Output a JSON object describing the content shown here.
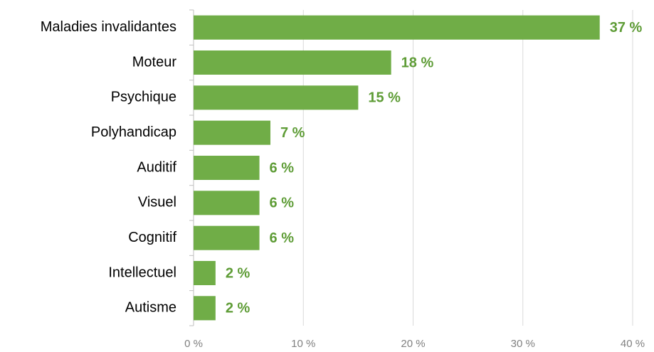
{
  "chart_data": {
    "type": "bar",
    "orientation": "horizontal",
    "categories": [
      "Maladies invalidantes",
      "Moteur",
      "Psychique",
      "Polyhandicap",
      "Auditif",
      "Visuel",
      "Cognitif",
      "Intellectuel",
      "Autisme"
    ],
    "values": [
      37,
      18,
      15,
      7,
      6,
      6,
      6,
      2,
      2
    ],
    "value_labels": [
      "37 %",
      "18 %",
      "15 %",
      "7 %",
      "6 %",
      "6 %",
      "6 %",
      "2 %",
      "2 %"
    ],
    "color": "#70ad47",
    "xlim": [
      0,
      40
    ],
    "xticks": [
      {
        "value": 0,
        "label": "0 %"
      },
      {
        "value": 10,
        "label": "10 %"
      },
      {
        "value": 20,
        "label": "20 %"
      },
      {
        "value": 30,
        "label": "30 %"
      },
      {
        "value": 40,
        "label": "40 %"
      }
    ],
    "grid": true
  }
}
